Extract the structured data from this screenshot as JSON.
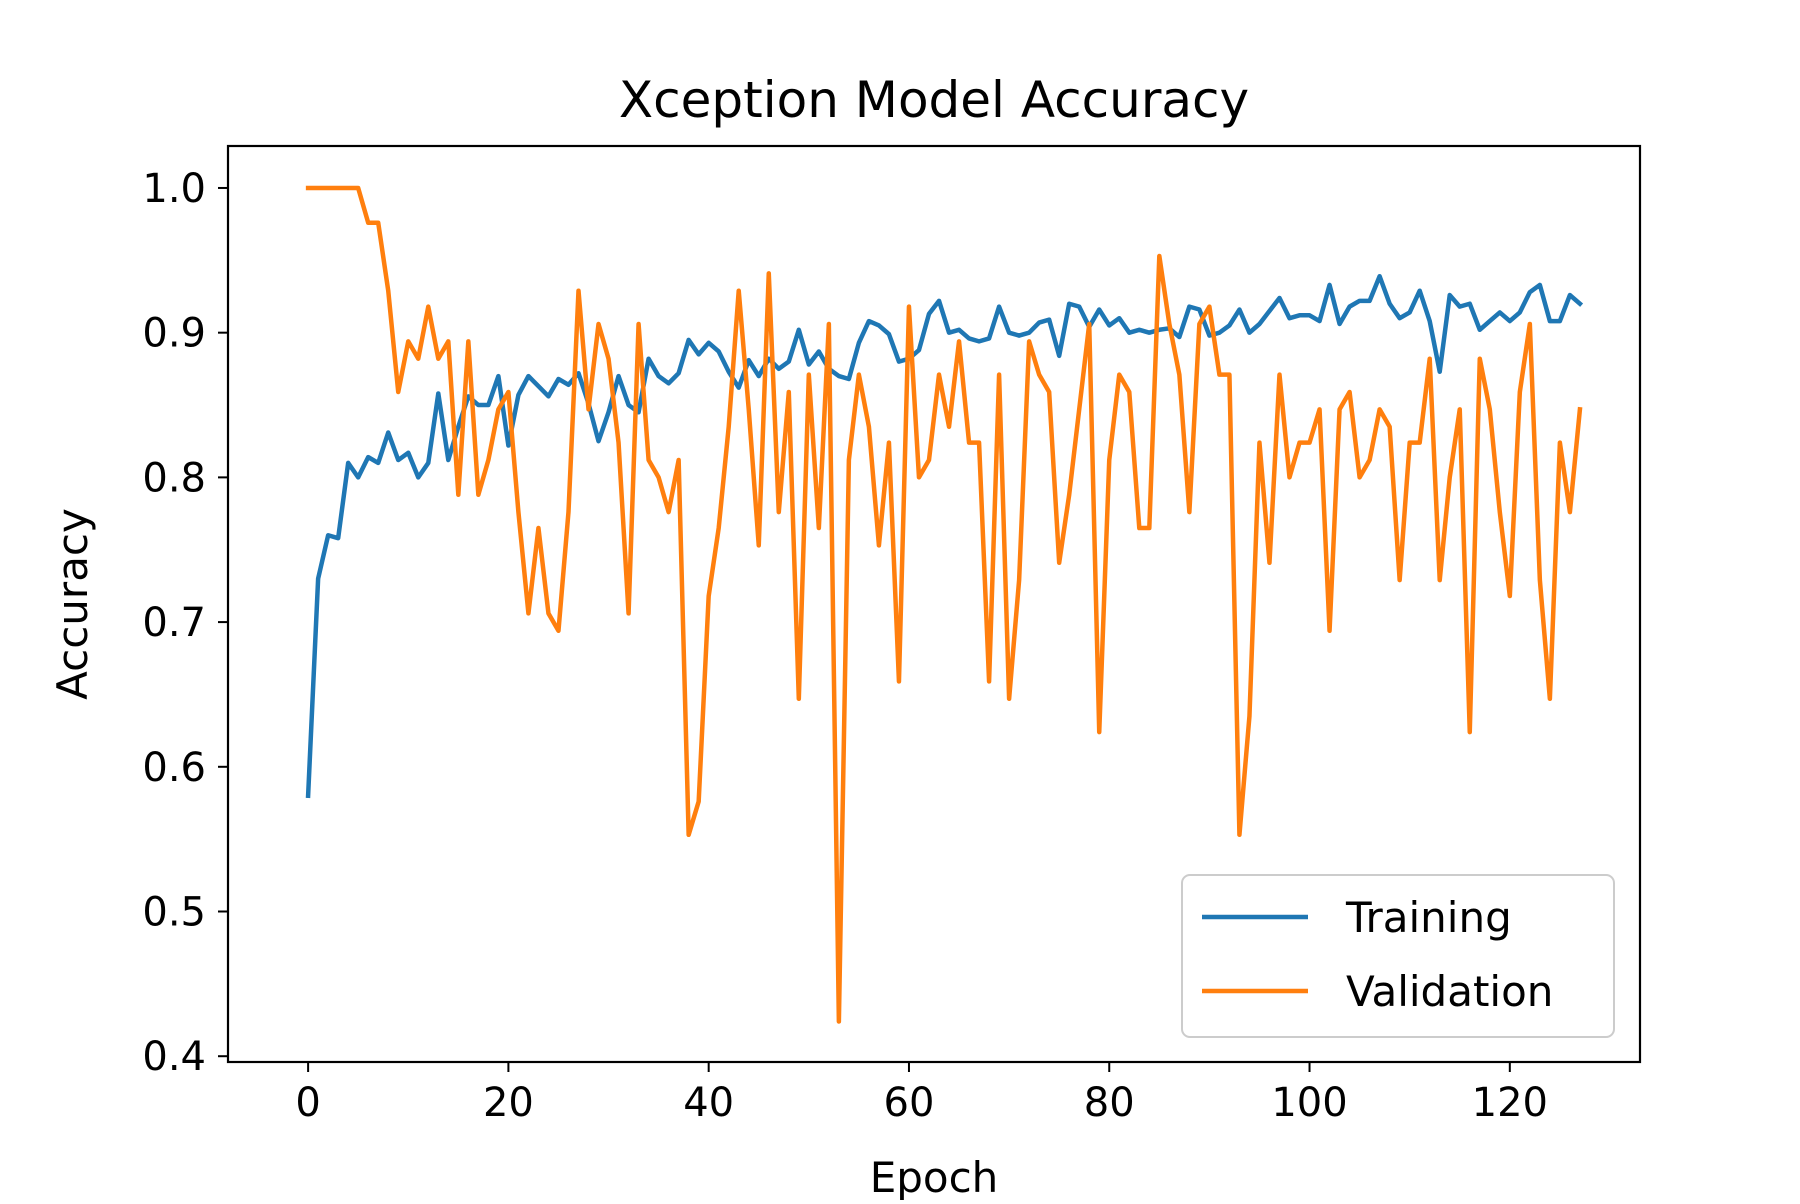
{
  "chart_data": {
    "type": "line",
    "title": "Xception Model Accuracy",
    "xlabel": "Epoch",
    "ylabel": "Accuracy",
    "xlim": [
      -8,
      133
    ],
    "ylim": [
      0.396,
      1.029
    ],
    "xticks": [
      0,
      20,
      40,
      60,
      80,
      100,
      120
    ],
    "yticks": [
      0.4,
      0.5,
      0.6,
      0.7,
      0.8,
      0.9,
      1.0
    ],
    "xtick_labels": [
      "0",
      "20",
      "40",
      "60",
      "80",
      "100",
      "120"
    ],
    "ytick_labels": [
      "0.4",
      "0.5",
      "0.6",
      "0.7",
      "0.8",
      "0.9",
      "1.0"
    ],
    "grid": false,
    "legend_position": "lower-right",
    "series": [
      {
        "name": "Training",
        "color": "#1f77b4",
        "values": [
          0.58,
          0.73,
          0.76,
          0.758,
          0.81,
          0.8,
          0.814,
          0.81,
          0.831,
          0.812,
          0.817,
          0.8,
          0.81,
          0.858,
          0.812,
          0.835,
          0.856,
          0.85,
          0.85,
          0.87,
          0.822,
          0.857,
          0.87,
          0.863,
          0.856,
          0.868,
          0.864,
          0.872,
          0.851,
          0.825,
          0.845,
          0.87,
          0.85,
          0.845,
          0.882,
          0.87,
          0.865,
          0.872,
          0.895,
          0.885,
          0.893,
          0.887,
          0.873,
          0.862,
          0.881,
          0.87,
          0.882,
          0.875,
          0.88,
          0.902,
          0.878,
          0.887,
          0.875,
          0.87,
          0.868,
          0.893,
          0.908,
          0.905,
          0.899,
          0.88,
          0.882,
          0.888,
          0.913,
          0.922,
          0.9,
          0.902,
          0.896,
          0.894,
          0.896,
          0.918,
          0.9,
          0.898,
          0.9,
          0.907,
          0.909,
          0.884,
          0.92,
          0.918,
          0.904,
          0.916,
          0.905,
          0.91,
          0.9,
          0.902,
          0.9,
          0.902,
          0.903,
          0.897,
          0.918,
          0.916,
          0.898,
          0.9,
          0.905,
          0.916,
          0.9,
          0.906,
          0.915,
          0.924,
          0.91,
          0.912,
          0.912,
          0.908,
          0.933,
          0.906,
          0.918,
          0.922,
          0.922,
          0.939,
          0.92,
          0.91,
          0.914,
          0.929,
          0.908,
          0.873,
          0.926,
          0.918,
          0.92,
          0.902,
          0.908,
          0.914,
          0.908,
          0.914,
          0.928,
          0.933,
          0.908,
          0.908,
          0.926,
          0.92
        ]
      },
      {
        "name": "Validation",
        "color": "#ff7f0e",
        "values": [
          1.0,
          1.0,
          1.0,
          1.0,
          1.0,
          1.0,
          0.976,
          0.976,
          0.929,
          0.859,
          0.894,
          0.882,
          0.918,
          0.882,
          0.894,
          0.788,
          0.894,
          0.788,
          0.812,
          0.847,
          0.859,
          0.776,
          0.706,
          0.765,
          0.706,
          0.694,
          0.776,
          0.929,
          0.847,
          0.906,
          0.882,
          0.824,
          0.706,
          0.906,
          0.812,
          0.8,
          0.776,
          0.812,
          0.553,
          0.576,
          0.718,
          0.765,
          0.835,
          0.929,
          0.847,
          0.753,
          0.941,
          0.776,
          0.859,
          0.647,
          0.871,
          0.765,
          0.906,
          0.424,
          0.812,
          0.871,
          0.835,
          0.753,
          0.824,
          0.659,
          0.918,
          0.8,
          0.812,
          0.871,
          0.835,
          0.894,
          0.824,
          0.824,
          0.659,
          0.871,
          0.647,
          0.729,
          0.894,
          0.871,
          0.859,
          0.741,
          0.788,
          0.847,
          0.906,
          0.624,
          0.812,
          0.871,
          0.859,
          0.765,
          0.765,
          0.953,
          0.906,
          0.871,
          0.776,
          0.906,
          0.918,
          0.871,
          0.871,
          0.553,
          0.635,
          0.824,
          0.741,
          0.871,
          0.8,
          0.824,
          0.824,
          0.847,
          0.694,
          0.847,
          0.859,
          0.8,
          0.812,
          0.847,
          0.835,
          0.729,
          0.824,
          0.824,
          0.882,
          0.729,
          0.8,
          0.847,
          0.624,
          0.882,
          0.847,
          0.776,
          0.718,
          0.859,
          0.906,
          0.729,
          0.647,
          0.824,
          0.776,
          0.847
        ]
      }
    ]
  }
}
